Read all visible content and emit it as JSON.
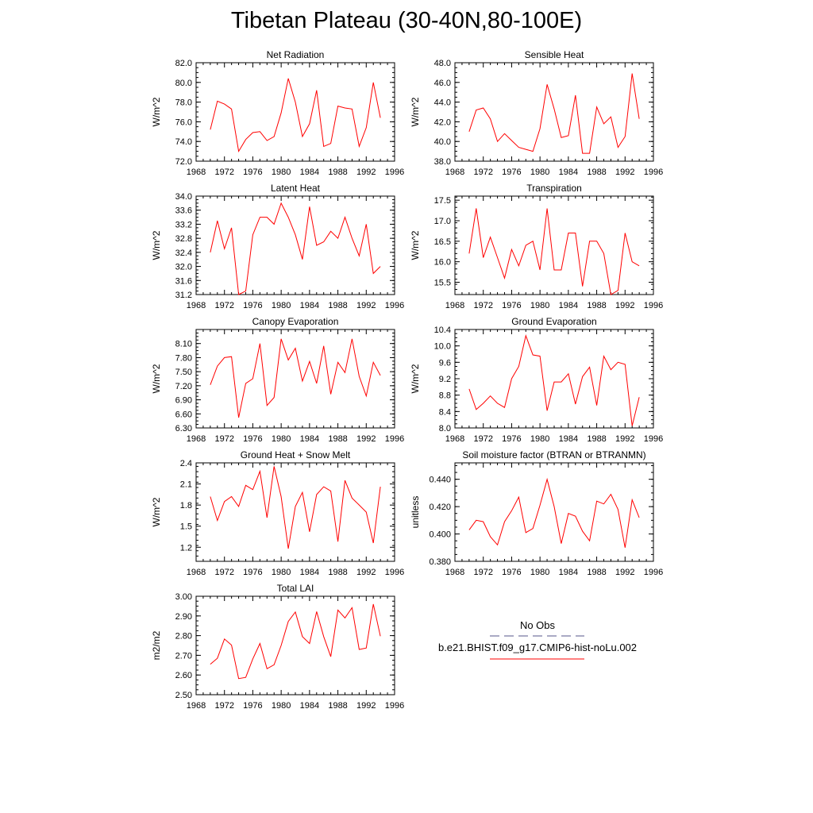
{
  "page": {
    "title": "Tibetan Plateau (30-40N,80-100E)"
  },
  "legend": {
    "obs_label": "No Obs",
    "obs_color": "#55558a",
    "model_label": "b.e21.BHIST.f09_g17.CMIP6-hist-noLu.002",
    "model_color": "#ff0000"
  },
  "chart_data": [
    {
      "type": "line",
      "title": "Net Radiation",
      "ylabel": "W/m^2",
      "xlim": [
        1968,
        1996
      ],
      "ylim": [
        72.0,
        82.0
      ],
      "xticks": [
        1968,
        1972,
        1976,
        1980,
        1984,
        1988,
        1992,
        1996
      ],
      "yticks": [
        72.0,
        74.0,
        76.0,
        78.0,
        80.0,
        82.0
      ],
      "ydecimals": 1,
      "x": [
        1970,
        1971,
        1972,
        1973,
        1974,
        1975,
        1976,
        1977,
        1978,
        1979,
        1980,
        1981,
        1982,
        1983,
        1984,
        1985,
        1986,
        1987,
        1988,
        1989,
        1990,
        1991,
        1992,
        1993,
        1994
      ],
      "series": [
        {
          "values": [
            75.2,
            78.1,
            77.8,
            77.3,
            73.0,
            74.2,
            74.9,
            75.0,
            74.1,
            74.5,
            76.9,
            80.4,
            78.0,
            74.5,
            75.8,
            79.2,
            73.5,
            73.8,
            77.6,
            77.4,
            77.3,
            73.5,
            75.4,
            80.0,
            76.4
          ]
        }
      ]
    },
    {
      "type": "line",
      "title": "Sensible Heat",
      "ylabel": "W/m^2",
      "xlim": [
        1968,
        1996
      ],
      "ylim": [
        38.0,
        48.0
      ],
      "xticks": [
        1968,
        1972,
        1976,
        1980,
        1984,
        1988,
        1992,
        1996
      ],
      "yticks": [
        38.0,
        40.0,
        42.0,
        44.0,
        46.0,
        48.0
      ],
      "ydecimals": 1,
      "x": [
        1970,
        1971,
        1972,
        1973,
        1974,
        1975,
        1976,
        1977,
        1978,
        1979,
        1980,
        1981,
        1982,
        1983,
        1984,
        1985,
        1986,
        1987,
        1988,
        1989,
        1990,
        1991,
        1992,
        1993,
        1994
      ],
      "series": [
        {
          "values": [
            41.0,
            43.2,
            43.4,
            42.3,
            40.0,
            40.8,
            40.1,
            39.4,
            39.2,
            39.0,
            41.3,
            45.8,
            43.3,
            40.4,
            40.6,
            44.7,
            38.8,
            38.8,
            43.5,
            41.8,
            42.5,
            39.4,
            40.5,
            46.9,
            42.3
          ]
        }
      ]
    },
    {
      "type": "line",
      "title": "Latent Heat",
      "ylabel": "W/m^2",
      "xlim": [
        1968,
        1996
      ],
      "ylim": [
        31.2,
        34.0
      ],
      "xticks": [
        1968,
        1972,
        1976,
        1980,
        1984,
        1988,
        1992,
        1996
      ],
      "yticks": [
        31.2,
        31.6,
        32.0,
        32.4,
        32.8,
        33.2,
        33.6,
        34.0
      ],
      "ydecimals": 1,
      "x": [
        1970,
        1971,
        1972,
        1973,
        1974,
        1975,
        1976,
        1977,
        1978,
        1979,
        1980,
        1981,
        1982,
        1983,
        1984,
        1985,
        1986,
        1987,
        1988,
        1989,
        1990,
        1991,
        1992,
        1993,
        1994
      ],
      "series": [
        {
          "values": [
            32.4,
            33.3,
            32.5,
            33.1,
            31.2,
            31.3,
            32.9,
            33.4,
            33.4,
            33.2,
            33.8,
            33.4,
            32.9,
            32.2,
            33.7,
            32.6,
            32.7,
            33.0,
            32.8,
            33.4,
            32.8,
            32.3,
            33.2,
            31.8,
            32.0
          ]
        }
      ]
    },
    {
      "type": "line",
      "title": "Transpiration",
      "ylabel": "W/m^2",
      "xlim": [
        1968,
        1996
      ],
      "ylim": [
        15.2,
        17.6
      ],
      "xticks": [
        1968,
        1972,
        1976,
        1980,
        1984,
        1988,
        1992,
        1996
      ],
      "yticks": [
        15.5,
        16.0,
        16.5,
        17.0,
        17.5
      ],
      "ydecimals": 1,
      "x": [
        1970,
        1971,
        1972,
        1973,
        1974,
        1975,
        1976,
        1977,
        1978,
        1979,
        1980,
        1981,
        1982,
        1983,
        1984,
        1985,
        1986,
        1987,
        1988,
        1989,
        1990,
        1991,
        1992,
        1993,
        1994
      ],
      "series": [
        {
          "values": [
            16.2,
            17.3,
            16.1,
            16.6,
            16.1,
            15.6,
            16.3,
            15.9,
            16.4,
            16.5,
            15.8,
            17.3,
            15.8,
            15.8,
            16.7,
            16.7,
            15.4,
            16.5,
            16.5,
            16.2,
            15.2,
            15.3,
            16.7,
            16.0,
            15.9
          ]
        }
      ]
    },
    {
      "type": "line",
      "title": "Canopy Evaporation",
      "ylabel": "W/m^2",
      "xlim": [
        1968,
        1996
      ],
      "ylim": [
        6.3,
        8.4
      ],
      "xticks": [
        1968,
        1972,
        1976,
        1980,
        1984,
        1988,
        1992,
        1996
      ],
      "yticks": [
        6.3,
        6.6,
        6.9,
        7.2,
        7.5,
        7.8,
        8.1
      ],
      "ydecimals": 2,
      "x": [
        1970,
        1971,
        1972,
        1973,
        1974,
        1975,
        1976,
        1977,
        1978,
        1979,
        1980,
        1981,
        1982,
        1983,
        1984,
        1985,
        1986,
        1987,
        1988,
        1989,
        1990,
        1991,
        1992,
        1993,
        1994
      ],
      "series": [
        {
          "values": [
            7.22,
            7.62,
            7.8,
            7.82,
            6.52,
            7.25,
            7.35,
            8.1,
            6.78,
            6.95,
            8.2,
            7.75,
            8.0,
            7.3,
            7.72,
            7.25,
            8.05,
            7.02,
            7.7,
            7.48,
            8.2,
            7.4,
            6.98,
            7.7,
            7.42
          ]
        }
      ]
    },
    {
      "type": "line",
      "title": "Ground Evaporation",
      "ylabel": "W/m^2",
      "xlim": [
        1968,
        1996
      ],
      "ylim": [
        8.0,
        10.4
      ],
      "xticks": [
        1968,
        1972,
        1976,
        1980,
        1984,
        1988,
        1992,
        1996
      ],
      "yticks": [
        8.0,
        8.4,
        8.8,
        9.2,
        9.6,
        10.0,
        10.4
      ],
      "ydecimals": 1,
      "x": [
        1970,
        1971,
        1972,
        1973,
        1974,
        1975,
        1976,
        1977,
        1978,
        1979,
        1980,
        1981,
        1982,
        1983,
        1984,
        1985,
        1986,
        1987,
        1988,
        1989,
        1990,
        1991,
        1992,
        1993,
        1994
      ],
      "series": [
        {
          "values": [
            8.95,
            8.45,
            8.6,
            8.78,
            8.6,
            8.5,
            9.2,
            9.5,
            10.25,
            9.78,
            9.75,
            8.42,
            9.12,
            9.12,
            9.32,
            8.58,
            9.25,
            9.48,
            8.55,
            9.75,
            9.42,
            9.6,
            9.55,
            8.05,
            8.75
          ]
        }
      ]
    },
    {
      "type": "line",
      "title": "Ground Heat + Snow Melt",
      "ylabel": "W/m^2",
      "xlim": [
        1968,
        1996
      ],
      "ylim": [
        1.0,
        2.4
      ],
      "xticks": [
        1968,
        1972,
        1976,
        1980,
        1984,
        1988,
        1992,
        1996
      ],
      "yticks": [
        1.2,
        1.5,
        1.8,
        2.1,
        2.4
      ],
      "ydecimals": 1,
      "x": [
        1970,
        1971,
        1972,
        1973,
        1974,
        1975,
        1976,
        1977,
        1978,
        1979,
        1980,
        1981,
        1982,
        1983,
        1984,
        1985,
        1986,
        1987,
        1988,
        1989,
        1990,
        1991,
        1992,
        1993,
        1994
      ],
      "series": [
        {
          "values": [
            1.92,
            1.58,
            1.85,
            1.92,
            1.78,
            2.08,
            2.02,
            2.28,
            1.62,
            2.35,
            1.92,
            1.18,
            1.78,
            1.98,
            1.42,
            1.95,
            2.06,
            2.0,
            1.28,
            2.15,
            1.9,
            1.8,
            1.7,
            1.26,
            2.06
          ]
        }
      ]
    },
    {
      "type": "line",
      "title": "Soil moisture factor (BTRAN or BTRANMN)",
      "ylabel": "unitless",
      "xlim": [
        1968,
        1996
      ],
      "ylim": [
        0.38,
        0.452
      ],
      "xticks": [
        1968,
        1972,
        1976,
        1980,
        1984,
        1988,
        1992,
        1996
      ],
      "yticks": [
        0.38,
        0.4,
        0.42,
        0.44
      ],
      "ydecimals": 3,
      "x": [
        1970,
        1971,
        1972,
        1973,
        1974,
        1975,
        1976,
        1977,
        1978,
        1979,
        1980,
        1981,
        1982,
        1983,
        1984,
        1985,
        1986,
        1987,
        1988,
        1989,
        1990,
        1991,
        1992,
        1993,
        1994
      ],
      "series": [
        {
          "values": [
            0.403,
            0.41,
            0.409,
            0.398,
            0.392,
            0.409,
            0.417,
            0.427,
            0.401,
            0.404,
            0.421,
            0.44,
            0.42,
            0.393,
            0.415,
            0.413,
            0.402,
            0.395,
            0.424,
            0.422,
            0.429,
            0.418,
            0.39,
            0.425,
            0.412
          ]
        }
      ]
    },
    {
      "type": "line",
      "title": "Total LAI",
      "ylabel": "m2/m2",
      "xlim": [
        1968,
        1996
      ],
      "ylim": [
        2.5,
        3.0
      ],
      "xticks": [
        1968,
        1972,
        1976,
        1980,
        1984,
        1988,
        1992,
        1996
      ],
      "yticks": [
        2.5,
        2.6,
        2.7,
        2.8,
        2.9,
        3.0
      ],
      "ydecimals": 2,
      "x": [
        1970,
        1971,
        1972,
        1973,
        1974,
        1975,
        1976,
        1977,
        1978,
        1979,
        1980,
        1981,
        1982,
        1983,
        1984,
        1985,
        1986,
        1987,
        1988,
        1989,
        1990,
        1991,
        1992,
        1993,
        1994
      ],
      "series": [
        {
          "values": [
            2.655,
            2.685,
            2.783,
            2.752,
            2.582,
            2.588,
            2.682,
            2.76,
            2.632,
            2.652,
            2.75,
            2.872,
            2.92,
            2.795,
            2.76,
            2.922,
            2.795,
            2.693,
            2.93,
            2.89,
            2.942,
            2.73,
            2.737,
            2.96,
            2.797
          ]
        }
      ]
    }
  ]
}
